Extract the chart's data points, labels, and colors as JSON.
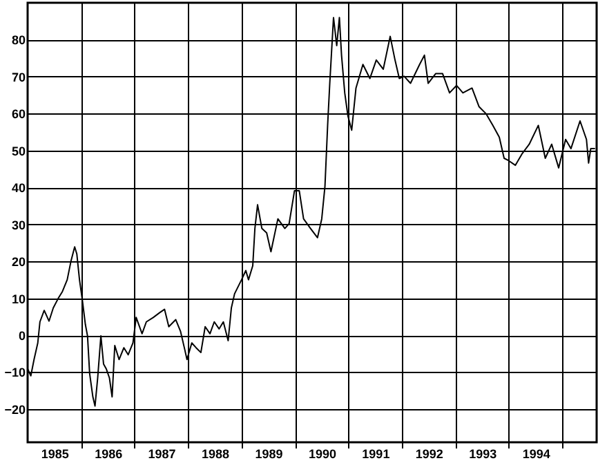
{
  "chart_data": {
    "type": "line",
    "xlim": [
      1985,
      1995.64
    ],
    "ylim": [
      -29,
      90
    ],
    "xticks": [
      {
        "value": 1985.5,
        "label": "1985"
      },
      {
        "value": 1986.5,
        "label": "1986"
      },
      {
        "value": 1987.5,
        "label": "1987"
      },
      {
        "value": 1988.5,
        "label": "1988"
      },
      {
        "value": 1989.5,
        "label": "1989"
      },
      {
        "value": 1990.5,
        "label": "1990"
      },
      {
        "value": 1991.5,
        "label": "1991"
      },
      {
        "value": 1992.5,
        "label": "1992"
      },
      {
        "value": 1993.5,
        "label": "1993"
      },
      {
        "value": 1994.5,
        "label": "1994"
      },
      {
        "value": 1986,
        "label": null
      },
      {
        "value": 1987,
        "label": null
      },
      {
        "value": 1988,
        "label": null
      },
      {
        "value": 1989,
        "label": null
      },
      {
        "value": 1990,
        "label": null
      },
      {
        "value": 1991,
        "label": null
      },
      {
        "value": 1992,
        "label": null
      },
      {
        "value": 1993,
        "label": null
      },
      {
        "value": 1994,
        "label": null
      },
      {
        "value": 1995,
        "label": null
      }
    ],
    "yticks": [
      -20,
      -10,
      0,
      10,
      20,
      30,
      40,
      50,
      60,
      70,
      80
    ],
    "grid": true,
    "line_style": "solid",
    "series": [
      {
        "color": "#000000",
        "x": [
          1985.0,
          1985.06,
          1985.12,
          1985.19,
          1985.23,
          1985.31,
          1985.4,
          1985.48,
          1985.57,
          1985.65,
          1985.74,
          1985.81,
          1985.88,
          1985.92,
          1985.97,
          1986.02,
          1986.08,
          1986.12,
          1986.16,
          1986.22,
          1986.26,
          1986.31,
          1986.37,
          1986.42,
          1986.47,
          1986.53,
          1986.58,
          1986.63,
          1986.71,
          1986.8,
          1986.88,
          1986.97,
          1987.03,
          1987.14,
          1987.22,
          1987.35,
          1987.47,
          1987.56,
          1987.64,
          1987.77,
          1987.86,
          1987.94,
          1987.98,
          1988.07,
          1988.15,
          1988.24,
          1988.32,
          1988.41,
          1988.49,
          1988.58,
          1988.66,
          1988.75,
          1988.81,
          1988.87,
          1989.0,
          1989.08,
          1989.13,
          1989.21,
          1989.25,
          1989.3,
          1989.38,
          1989.47,
          1989.55,
          1989.68,
          1989.81,
          1989.89,
          1989.99,
          1990.08,
          1990.16,
          1990.29,
          1990.42,
          1990.5,
          1990.56,
          1990.61,
          1990.65,
          1990.72,
          1990.78,
          1990.83,
          1990.87,
          1990.93,
          1990.99,
          1991.06,
          1991.14,
          1991.27,
          1991.4,
          1991.52,
          1991.65,
          1991.78,
          1991.87,
          1991.95,
          1992.04,
          1992.16,
          1992.33,
          1992.42,
          1992.49,
          1992.63,
          1992.76,
          1992.89,
          1993.02,
          1993.14,
          1993.31,
          1993.44,
          1993.57,
          1993.7,
          1993.82,
          1993.91,
          1993.99,
          1994.12,
          1994.25,
          1994.38,
          1994.55,
          1994.68,
          1994.8,
          1994.93,
          1995.06,
          1995.16,
          1995.33,
          1995.45,
          1995.49,
          1995.53,
          1995.61
        ],
        "values": [
          -9.1,
          -11,
          -6.6,
          -2.1,
          3.6,
          6.7,
          3.8,
          7.4,
          9.9,
          11.8,
          15,
          20,
          23.9,
          22,
          15,
          9.9,
          2.9,
          -0.2,
          -10.4,
          -16.7,
          -19.2,
          -11.6,
          -0.2,
          -7.8,
          -9.1,
          -11.6,
          -16.7,
          -2.8,
          -6.6,
          -3.4,
          -5.3,
          -2.1,
          4.8,
          0.4,
          3.6,
          4.8,
          6.1,
          7,
          2.3,
          4.2,
          1,
          -4,
          -6.6,
          -2.1,
          -3.4,
          -4.7,
          2.3,
          0.4,
          3.6,
          1.7,
          3.6,
          -1.5,
          7.4,
          11.2,
          15,
          17.5,
          15,
          18.8,
          28.9,
          35.3,
          28.9,
          27.7,
          22.6,
          31.5,
          28.9,
          30.2,
          39.1,
          39.1,
          31.5,
          28.9,
          26.4,
          31.5,
          40.3,
          56.8,
          68.2,
          86,
          78.4,
          86,
          75.8,
          65.6,
          59.3,
          55.5,
          66.9,
          73.3,
          69.5,
          74.5,
          72,
          80.9,
          74.5,
          69.5,
          70.1,
          68.2,
          73.3,
          75.8,
          68.2,
          70.8,
          70.8,
          65.6,
          67.6,
          65.6,
          66.9,
          61.9,
          60,
          56.8,
          53.6,
          47.9,
          47.3,
          46,
          49.2,
          51.7,
          56.8,
          47.9,
          51.7,
          45.3,
          53,
          50.5,
          58,
          53,
          46.6,
          50.5,
          50.5
        ]
      }
    ]
  }
}
